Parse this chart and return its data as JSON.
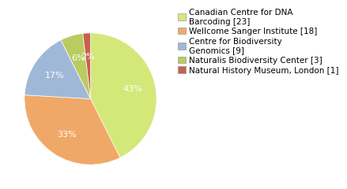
{
  "labels": [
    "Canadian Centre for DNA\nBarcoding [23]",
    "Wellcome Sanger Institute [18]",
    "Centre for Biodiversity\nGenomics [9]",
    "Naturalis Biodiversity Center [3]",
    "Natural History Museum, London [1]"
  ],
  "values": [
    23,
    18,
    9,
    3,
    1
  ],
  "colors": [
    "#d4e87a",
    "#f0a868",
    "#a0b8d8",
    "#b8cc60",
    "#c86050"
  ],
  "background_color": "#ffffff",
  "autopct_fontsize": 8,
  "legend_fontsize": 7.5
}
